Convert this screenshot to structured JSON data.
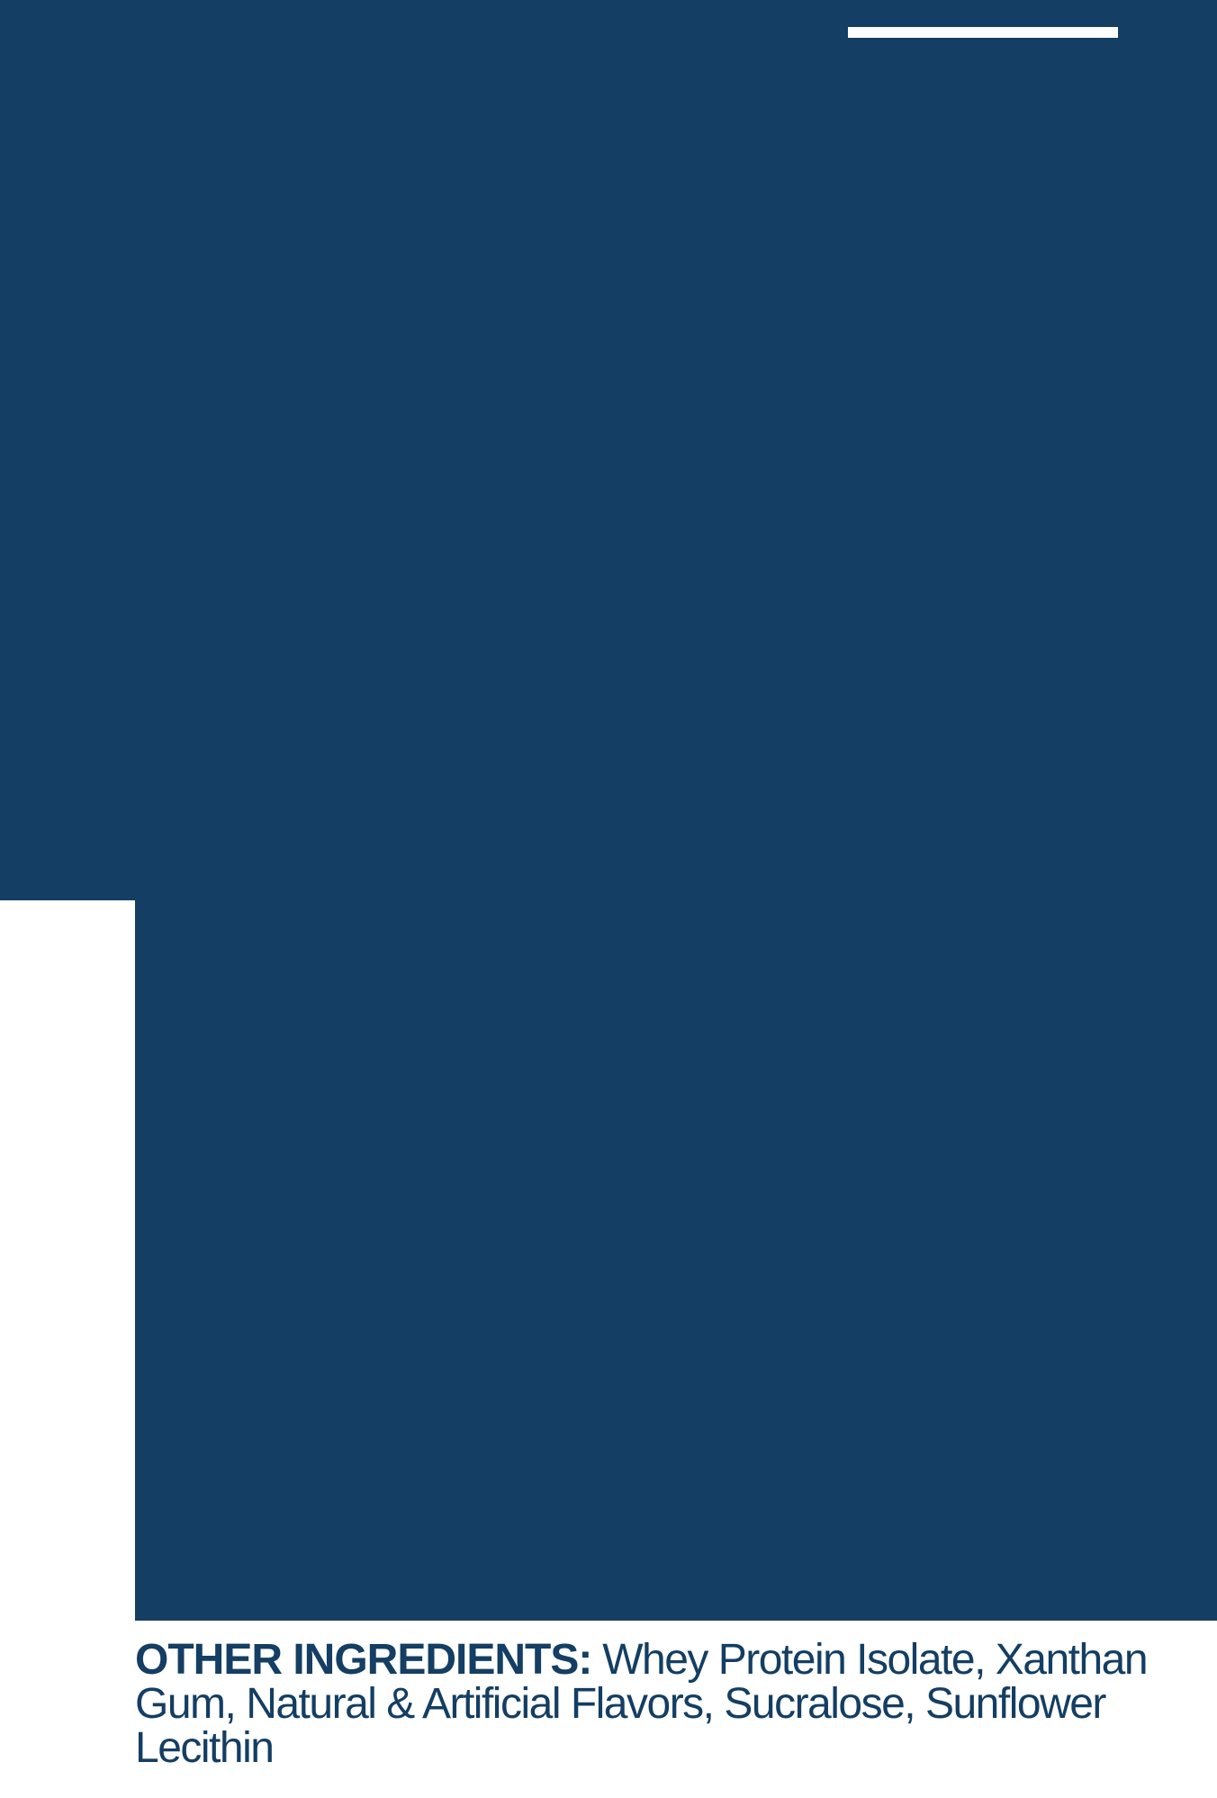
{
  "colors": {
    "panel_bg": "#143e63",
    "page_bg": "#ffffff",
    "text": "#143e63"
  },
  "ingredients": {
    "label": "OTHER INGREDIENTS:",
    "body": " Whey Protein Isolate, Xanthan Gum, Natural & Artificial Flavors, Sucralose, Sunflower Lecithin"
  }
}
